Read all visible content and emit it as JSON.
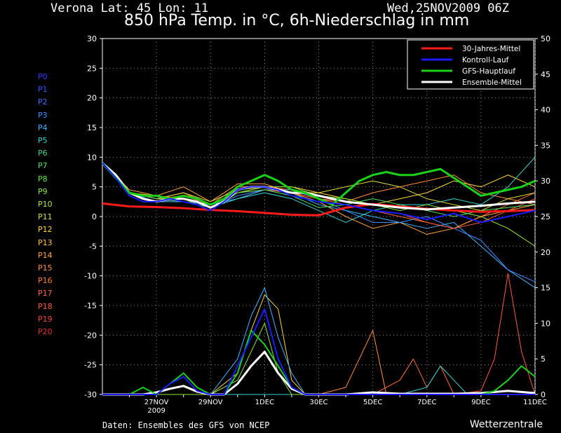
{
  "header": {
    "location": "Verona   Lat: 45 Lon: 11",
    "date": "Wed,25NOV2009 06Z",
    "title": "850 hPa Temp. in °C, 6h-Niederschlag in mm"
  },
  "footer": {
    "source": "Daten: Ensembles des GFS von NCEP",
    "brand": "Wetterzentrale"
  },
  "members": [
    {
      "label": "P0",
      "color": "#2a3cff"
    },
    {
      "label": "P1",
      "color": "#3355ff"
    },
    {
      "label": "P2",
      "color": "#3f6eff"
    },
    {
      "label": "P3",
      "color": "#3f8cff"
    },
    {
      "label": "P4",
      "color": "#3fb6ff"
    },
    {
      "label": "P5",
      "color": "#36d4d4"
    },
    {
      "label": "P6",
      "color": "#3fd68a"
    },
    {
      "label": "P7",
      "color": "#54e060"
    },
    {
      "label": "P8",
      "color": "#5ee83c"
    },
    {
      "label": "P9",
      "color": "#8ce83c"
    },
    {
      "label": "P10",
      "color": "#b4e83c"
    },
    {
      "label": "P11",
      "color": "#dede3c"
    },
    {
      "label": "P12",
      "color": "#ffd63c"
    },
    {
      "label": "P13",
      "color": "#ffc13c"
    },
    {
      "label": "P14",
      "color": "#ffa53c"
    },
    {
      "label": "P15",
      "color": "#ff8e3c"
    },
    {
      "label": "P16",
      "color": "#ff7a3c"
    },
    {
      "label": "P17",
      "color": "#ff6a3c"
    },
    {
      "label": "P18",
      "color": "#ff5a3c"
    },
    {
      "label": "P19",
      "color": "#f0463c"
    },
    {
      "label": "P20",
      "color": "#dd3a30"
    }
  ],
  "chart_data": {
    "type": "line",
    "title": "850 hPa Temp. in °C, 6h-Niederschlag in mm",
    "x_ticks": [
      {
        "label": "27NOV",
        "sub": "2009",
        "pos": 2
      },
      {
        "label": "29NOV",
        "sub": "",
        "pos": 4
      },
      {
        "label": "1DEC",
        "sub": "",
        "pos": 6
      },
      {
        "label": "30EC",
        "sub": "",
        "pos": 8
      },
      {
        "label": "5DEC",
        "sub": "",
        "pos": 10
      },
      {
        "label": "7DEC",
        "sub": "",
        "pos": 12
      },
      {
        "label": "9DEC",
        "sub": "",
        "pos": 14
      },
      {
        "label": "11DEC",
        "sub": "",
        "pos": 16
      }
    ],
    "x_range": [
      0,
      16
    ],
    "y_left": {
      "min": -30,
      "max": 30,
      "ticks": [
        -30,
        -25,
        -20,
        -15,
        -10,
        -5,
        0,
        5,
        10,
        15,
        20,
        25,
        30
      ]
    },
    "y_right": {
      "min": 0,
      "max": 50,
      "ticks": [
        0,
        5,
        10,
        15,
        20,
        25,
        30,
        35,
        40,
        45,
        50
      ]
    },
    "grid": true,
    "legend_position": "top-right",
    "legend": [
      {
        "name": "30-Jahres-Mittel",
        "color": "#ff1a1a"
      },
      {
        "name": "Kontroll-Lauf",
        "color": "#1a1aff"
      },
      {
        "name": "GFS-Hauptlauf",
        "color": "#1ad11a"
      },
      {
        "name": "Ensemble-Mittel",
        "color": "#ffffff"
      }
    ],
    "temperature_series": [
      {
        "name": "30-Jahres-Mittel",
        "color": "#ff1a1a",
        "width": 3,
        "x": [
          0,
          1,
          2,
          3,
          4,
          5,
          6,
          7,
          8,
          9,
          10,
          11,
          12,
          13,
          14,
          15,
          16
        ],
        "y": [
          2.2,
          1.7,
          1.6,
          1.4,
          1.1,
          0.9,
          0.6,
          0.3,
          0.2,
          1.5,
          2.1,
          1.7,
          1.3,
          1.0,
          0.8,
          0.9,
          1.1
        ]
      },
      {
        "name": "Ensemble-Mittel",
        "color": "#ffffff",
        "width": 3,
        "x": [
          0,
          0.5,
          1,
          1.5,
          2,
          2.5,
          3,
          3.5,
          4,
          4.5,
          5,
          5.5,
          6,
          6.5,
          7,
          7.5,
          8,
          8.5,
          9,
          10,
          11,
          12,
          13,
          14,
          15,
          16
        ],
        "y": [
          9,
          7,
          4,
          3,
          2.5,
          3,
          3,
          2.5,
          1.5,
          2.5,
          4.5,
          5,
          5,
          4.5,
          4,
          4,
          3.5,
          3,
          2.5,
          2,
          1.5,
          1.2,
          1.5,
          1.8,
          2.2,
          2.5
        ]
      },
      {
        "name": "GFS-Hauptlauf",
        "color": "#1ad11a",
        "width": 3,
        "x": [
          0,
          0.5,
          1,
          1.5,
          2,
          2.5,
          3,
          3.5,
          4,
          4.5,
          5,
          5.5,
          6,
          6.5,
          7,
          7.5,
          8,
          8.5,
          9,
          9.5,
          10,
          10.5,
          11,
          11.5,
          12,
          12.5,
          13,
          13.5,
          14,
          14.5,
          15,
          15.5,
          16
        ],
        "y": [
          9,
          6.5,
          4,
          3.5,
          3.5,
          3,
          3.5,
          3,
          2,
          3,
          5,
          6,
          7,
          6,
          4.5,
          4,
          3,
          2,
          4,
          6,
          7,
          7.5,
          7,
          7,
          7.5,
          8,
          6.5,
          5,
          3.5,
          4,
          4.5,
          5,
          6
        ]
      },
      {
        "name": "Kontroll-Lauf",
        "color": "#1a1aff",
        "width": 2,
        "x": [
          0,
          0.5,
          1,
          1.5,
          2,
          2.5,
          3,
          3.5,
          4,
          4.5,
          5,
          5.5,
          6,
          6.5,
          7,
          7.5,
          8,
          9,
          10,
          11,
          12,
          13,
          14,
          15,
          16
        ],
        "y": [
          9,
          6.5,
          3.5,
          2.5,
          2.5,
          3,
          2.5,
          2,
          1,
          2.5,
          4.5,
          5,
          5,
          4.5,
          3.5,
          3,
          2.5,
          2,
          1,
          0.5,
          -0.5,
          0.5,
          -1,
          0,
          1
        ]
      },
      {
        "color": "#ff8e3c",
        "width": 1,
        "x": [
          0,
          1,
          2,
          3,
          4,
          5,
          6,
          7,
          8,
          9,
          10,
          11,
          12,
          13,
          14,
          15,
          16
        ],
        "y": [
          9,
          4,
          3,
          4,
          2,
          5,
          5,
          4,
          3,
          2.5,
          4,
          5,
          6,
          7,
          4,
          3,
          2
        ]
      },
      {
        "color": "#ffd63c",
        "width": 1,
        "x": [
          0,
          1,
          2,
          3,
          4,
          5,
          6,
          7,
          8,
          9,
          10,
          11,
          12,
          13,
          14,
          15,
          16
        ],
        "y": [
          9,
          4,
          3.5,
          3,
          2,
          4,
          5,
          5,
          4,
          3,
          2,
          3,
          4,
          6,
          5,
          7,
          5
        ]
      },
      {
        "color": "#3fb6ff",
        "width": 1,
        "x": [
          0,
          1,
          2,
          3,
          4,
          5,
          6,
          7,
          8,
          9,
          10,
          11,
          12,
          13,
          14,
          15,
          16
        ],
        "y": [
          9,
          4,
          2.5,
          2.5,
          2,
          3,
          4.5,
          4,
          2,
          1,
          0,
          -1,
          -2,
          -1,
          -5,
          -9,
          -12
        ]
      },
      {
        "color": "#36d4d4",
        "width": 1,
        "x": [
          0,
          1,
          2,
          3,
          4,
          5,
          6,
          7,
          8,
          9,
          10,
          11,
          12,
          13,
          14,
          15,
          16
        ],
        "y": [
          9,
          4,
          3,
          3,
          1.5,
          3,
          4,
          3,
          1,
          -1,
          1,
          2,
          2,
          3,
          2,
          5,
          10
        ]
      },
      {
        "color": "#ff6a3c",
        "width": 1,
        "x": [
          0,
          1,
          2,
          3,
          4,
          5,
          6,
          7,
          8,
          9,
          10,
          11,
          12,
          13,
          14,
          15,
          16
        ],
        "y": [
          9,
          4,
          3,
          4,
          2,
          4,
          5,
          4.5,
          3,
          2,
          1,
          0,
          -1,
          -2,
          0,
          2,
          4
        ]
      },
      {
        "color": "#8ce83c",
        "width": 1,
        "x": [
          0,
          1,
          2,
          3,
          4,
          5,
          6,
          7,
          8,
          9,
          10,
          11,
          12,
          13,
          14,
          15,
          16
        ],
        "y": [
          9,
          4,
          3,
          3,
          1,
          4,
          5,
          5,
          3.5,
          3,
          2,
          1,
          2,
          1,
          0,
          -2,
          -5
        ]
      },
      {
        "color": "#ffa53c",
        "width": 1,
        "x": [
          0,
          1,
          2,
          3,
          4,
          5,
          6,
          7,
          8,
          9,
          10,
          11,
          12,
          13,
          14,
          15,
          16
        ],
        "y": [
          9,
          4.5,
          3.5,
          5,
          2.5,
          5.5,
          5.5,
          4,
          2.5,
          0,
          -2,
          -1,
          -3,
          -2,
          0,
          1,
          2
        ]
      },
      {
        "color": "#3f8cff",
        "width": 1,
        "x": [
          0,
          1,
          2,
          3,
          4,
          5,
          6,
          7,
          8,
          9,
          10,
          11,
          12,
          13,
          14,
          15,
          16
        ],
        "y": [
          9,
          4,
          2.5,
          3,
          1.5,
          3.5,
          4.5,
          4.5,
          3,
          1,
          -1,
          -1,
          0,
          -2,
          -4,
          -9,
          -11
        ]
      },
      {
        "color": "#dede3c",
        "width": 1,
        "x": [
          0,
          1,
          2,
          3,
          4,
          5,
          6,
          7,
          8,
          9,
          10,
          11,
          12,
          13,
          14,
          15,
          16
        ],
        "y": [
          9,
          4,
          3,
          4,
          2.5,
          4.5,
          5,
          4,
          4,
          5,
          6,
          5,
          3,
          2,
          1,
          3,
          4
        ]
      },
      {
        "color": "#ff5a3c",
        "width": 1,
        "x": [
          0,
          1,
          2,
          3,
          4,
          5,
          6,
          7,
          8,
          9,
          10,
          11,
          12,
          13,
          14,
          15,
          16
        ],
        "y": [
          9,
          4,
          3,
          3.5,
          2,
          4,
          4.5,
          4,
          3,
          2,
          1,
          0.5,
          -1,
          -2,
          -1,
          1,
          3
        ]
      },
      {
        "color": "#54e060",
        "width": 1,
        "x": [
          0,
          1,
          2,
          3,
          4,
          5,
          6,
          7,
          8,
          9,
          10,
          11,
          12,
          13,
          14,
          15,
          16
        ],
        "y": [
          9,
          4,
          3,
          2.5,
          1.5,
          4,
          4.5,
          3.5,
          1.5,
          2,
          3,
          2,
          1,
          0,
          1,
          1.5,
          2
        ]
      }
    ],
    "precipitation_series": [
      {
        "name": "Ensemble-Mittel",
        "color": "#ffffff",
        "width": 3,
        "x": [
          0,
          1,
          1.5,
          2,
          2.5,
          3,
          3.5,
          4,
          4.5,
          5,
          5.5,
          6,
          6.5,
          7,
          7.5,
          8,
          9,
          10,
          11,
          12,
          13,
          14,
          15,
          16
        ],
        "y": [
          0,
          0,
          0,
          0.3,
          0.8,
          1.2,
          0.4,
          0,
          0,
          1.5,
          4,
          6,
          3,
          0.8,
          0,
          0,
          0,
          0.3,
          0.1,
          0.1,
          0.1,
          0.2,
          0.5,
          0.2
        ]
      },
      {
        "name": "GFS-Hauptlauf",
        "color": "#1ad11a",
        "width": 2,
        "x": [
          0,
          1,
          1.5,
          2,
          2.5,
          3,
          3.5,
          4,
          4.5,
          5,
          5.5,
          6,
          6.5,
          7,
          7.5,
          8,
          9,
          10,
          11,
          12,
          13,
          14,
          14.5,
          15,
          15.5,
          16
        ],
        "y": [
          0,
          0,
          1,
          0,
          1.5,
          3,
          1,
          0,
          0,
          3,
          9,
          7,
          4,
          1,
          0,
          0,
          0,
          0,
          0,
          0,
          0,
          0,
          0.5,
          2,
          4,
          2.5
        ]
      },
      {
        "name": "Kontroll-Lauf",
        "color": "#1a1aff",
        "width": 2,
        "x": [
          0,
          1,
          2,
          2.5,
          3,
          3.5,
          4,
          4.5,
          5,
          5.5,
          6,
          6.5,
          7,
          7.5,
          8,
          9,
          10,
          11,
          12,
          13,
          14,
          15,
          16
        ],
        "y": [
          0,
          0,
          0,
          1.5,
          2.5,
          0.5,
          0,
          0,
          4,
          8,
          12,
          5,
          1,
          0,
          0,
          0,
          0,
          0,
          0,
          0,
          0,
          0,
          0
        ]
      },
      {
        "color": "#ff5a3c",
        "width": 1,
        "x": [
          0,
          13,
          14,
          14.5,
          15,
          15.5,
          16
        ],
        "y": [
          0,
          0,
          0.5,
          5,
          17,
          6,
          0
        ]
      },
      {
        "color": "#ff8e3c",
        "width": 1,
        "x": [
          0,
          8,
          9,
          9.5,
          10,
          10.5,
          11,
          12,
          13,
          14,
          16
        ],
        "y": [
          0,
          0,
          1,
          5,
          9,
          0,
          0,
          0,
          0,
          0,
          0
        ]
      },
      {
        "color": "#ffd63c",
        "width": 1,
        "x": [
          0,
          4,
          5,
          5.5,
          6,
          6.5,
          7,
          7.5,
          8,
          16
        ],
        "y": [
          0,
          0,
          3,
          9,
          14,
          12,
          2,
          0,
          0,
          0
        ]
      },
      {
        "color": "#3fb6ff",
        "width": 1,
        "x": [
          0,
          4,
          5,
          5.5,
          6,
          6.5,
          7,
          7.5,
          8,
          16
        ],
        "y": [
          0,
          0,
          5,
          11,
          15,
          8,
          3,
          0,
          0,
          0
        ]
      },
      {
        "color": "#ff6a3c",
        "width": 1,
        "x": [
          0,
          10,
          11,
          11.5,
          12,
          12.5,
          13,
          14,
          16
        ],
        "y": [
          0,
          0,
          2,
          5,
          1,
          4,
          0,
          0,
          0
        ]
      },
      {
        "color": "#36d4d4",
        "width": 1,
        "x": [
          0,
          11,
          12,
          12.5,
          13,
          13.5,
          14,
          16
        ],
        "y": [
          0,
          0,
          1,
          4,
          2,
          0,
          0,
          0
        ]
      },
      {
        "color": "#8ce83c",
        "width": 1,
        "x": [
          0,
          4,
          5,
          5.5,
          6,
          6.5,
          7,
          16
        ],
        "y": [
          0,
          0,
          2,
          6,
          10,
          3,
          0,
          0
        ]
      }
    ]
  }
}
